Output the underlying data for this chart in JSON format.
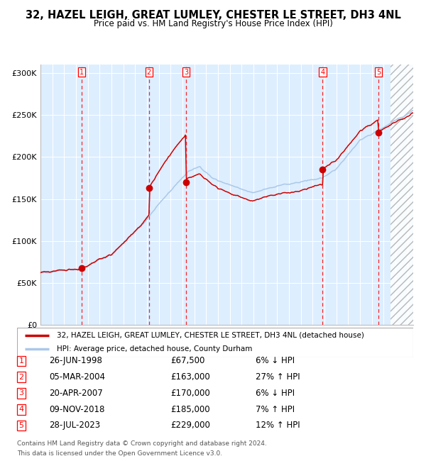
{
  "title": "32, HAZEL LEIGH, GREAT LUMLEY, CHESTER LE STREET, DH3 4NL",
  "subtitle": "Price paid vs. HM Land Registry's House Price Index (HPI)",
  "legend_line1": "32, HAZEL LEIGH, GREAT LUMLEY, CHESTER LE STREET, DH3 4NL (detached house)",
  "legend_line2": "HPI: Average price, detached house, County Durham",
  "footer1": "Contains HM Land Registry data © Crown copyright and database right 2024.",
  "footer2": "This data is licensed under the Open Government Licence v3.0.",
  "sales": [
    {
      "num": 1,
      "date_label": "26-JUN-1998",
      "price": 67500,
      "pct": "6% ↓ HPI",
      "date_x": 1998.48
    },
    {
      "num": 2,
      "date_label": "05-MAR-2004",
      "price": 163000,
      "pct": "27% ↑ HPI",
      "date_x": 2004.17
    },
    {
      "num": 3,
      "date_label": "20-APR-2007",
      "price": 170000,
      "pct": "6% ↓ HPI",
      "date_x": 2007.3
    },
    {
      "num": 4,
      "date_label": "09-NOV-2018",
      "price": 185000,
      "pct": "7% ↑ HPI",
      "date_x": 2018.85
    },
    {
      "num": 5,
      "date_label": "28-JUL-2023",
      "price": 229000,
      "pct": "12% ↑ HPI",
      "date_x": 2023.57
    }
  ],
  "hpi_color": "#aac8e8",
  "sale_color": "#cc0000",
  "bg_color": "#ddeeff",
  "ylim": [
    0,
    310000
  ],
  "xlim_start": 1995.0,
  "xlim_end": 2026.5,
  "future_start": 2024.58,
  "yticks": [
    0,
    50000,
    100000,
    150000,
    200000,
    250000,
    300000
  ],
  "ytick_labels": [
    "£0",
    "£50K",
    "£100K",
    "£150K",
    "£200K",
    "£250K",
    "£300K"
  ],
  "xticks": [
    1995,
    1996,
    1997,
    1998,
    1999,
    2000,
    2001,
    2002,
    2003,
    2004,
    2005,
    2006,
    2007,
    2008,
    2009,
    2010,
    2011,
    2012,
    2013,
    2014,
    2015,
    2016,
    2017,
    2018,
    2019,
    2020,
    2021,
    2022,
    2023,
    2024,
    2025,
    2026
  ]
}
